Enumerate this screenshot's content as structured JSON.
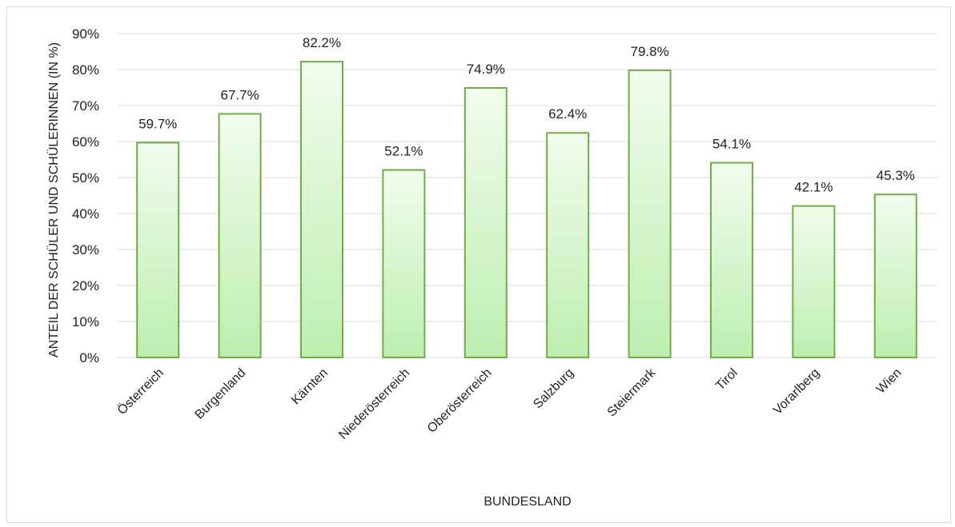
{
  "chart_data": {
    "type": "bar",
    "title": "",
    "xlabel": "BUNDESLAND",
    "ylabel": "ANTEIL DER SCHÜLER UND SCHÜLERINNEN (IN %)",
    "categories": [
      "Österreich",
      "Burgenland",
      "Kärnten",
      "Niederösterreich",
      "Oberösterreich",
      "Salzburg",
      "Steiermark",
      "Tirol",
      "Vorarlberg",
      "Wien"
    ],
    "values": [
      59.7,
      67.7,
      82.2,
      52.1,
      74.9,
      62.4,
      79.8,
      54.1,
      42.1,
      45.3
    ],
    "data_labels": [
      "59.7%",
      "67.7%",
      "82.2%",
      "52.1%",
      "74.9%",
      "62.4%",
      "79.8%",
      "54.1%",
      "42.1%",
      "45.3%"
    ],
    "yticks": [
      0,
      10,
      20,
      30,
      40,
      50,
      60,
      70,
      80,
      90
    ],
    "ytick_labels": [
      "0%",
      "10%",
      "20%",
      "30%",
      "40%",
      "50%",
      "60%",
      "70%",
      "80%",
      "90%"
    ],
    "ylim": [
      0,
      90
    ],
    "grid": true,
    "legend": "none",
    "colors": {
      "bar_fill_top": "#f2fcee",
      "bar_fill_bottom": "#bdeeb0",
      "bar_border": "#70ad47",
      "grid": "#d9d9d9"
    }
  }
}
